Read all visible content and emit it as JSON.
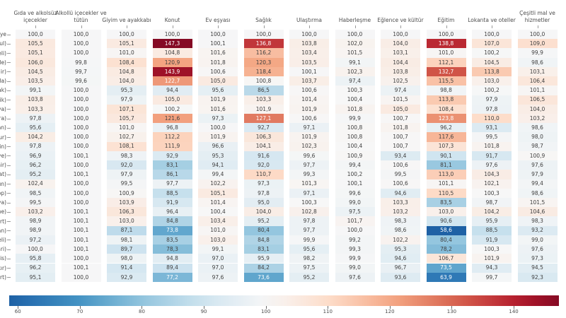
{
  "chart_data": {
    "type": "heatmap",
    "title": "",
    "columns": [
      "Gıda ve alkolsüz\niçecekler",
      "Alkollü içecekler ve\ntütün",
      "Giyim ve ayakkabı",
      "Konut",
      "Ev eşyası",
      "Sağlık",
      "Ulaştırma",
      "Haberleşme",
      "Eğlence ve kültür",
      "Eğitim",
      "Lokanta ve oteller",
      "Çeşitli mal ve\nhizmetler"
    ],
    "row_labels_visible": [
      "ye",
      "ul)",
      "eli)",
      "ale)",
      "ir)",
      "ğla)",
      "şak)",
      "cik)",
      "ova)",
      "ara)",
      "man)",
      "dur)",
      "sin)",
      "iye)",
      "hir)",
      "gat)",
      "tın)",
      "nop)",
      "sya)",
      "ane)",
      "urt)",
      "han)",
      "celi)",
      "kari)",
      "ilis)",
      "kır)",
      "iirt)"
    ],
    "values": [
      [
        100.0,
        100.0,
        100.0,
        100.0,
        100.0,
        100.0,
        100.0,
        100.0,
        100.0,
        100.0,
        100.0,
        100.0
      ],
      [
        105.5,
        100.0,
        105.1,
        147.3,
        100.1,
        136.8,
        103.8,
        102.0,
        104.0,
        138.8,
        107.0,
        109.0
      ],
      [
        105.1,
        100.0,
        101.0,
        104.8,
        101.6,
        116.2,
        103.4,
        101.5,
        103.1,
        101.0,
        100.2,
        99.9
      ],
      [
        106.0,
        99.8,
        108.4,
        120.9,
        101.8,
        120.3,
        103.5,
        99.1,
        104.4,
        112.1,
        104.5,
        98.6
      ],
      [
        104.5,
        99.7,
        104.8,
        143.9,
        100.6,
        118.4,
        100.1,
        102.3,
        103.8,
        132.7,
        113.8,
        103.1
      ],
      [
        103.5,
        99.6,
        104.0,
        122.7,
        105.0,
        100.8,
        103.7,
        97.4,
        102.5,
        115.5,
        103.0,
        106.4
      ],
      [
        99.1,
        100.0,
        95.3,
        94.4,
        95.6,
        86.5,
        100.6,
        100.3,
        97.4,
        98.8,
        100.2,
        101.1
      ],
      [
        103.8,
        100.0,
        97.9,
        105.0,
        101.9,
        103.3,
        101.4,
        100.4,
        101.5,
        113.8,
        97.9,
        106.5
      ],
      [
        103.3,
        100.0,
        107.1,
        100.2,
        101.6,
        101.9,
        101.9,
        101.8,
        105.0,
        108.4,
        97.8,
        104.0
      ],
      [
        97.8,
        100.0,
        105.7,
        121.6,
        97.3,
        127.1,
        100.6,
        99.9,
        100.7,
        123.8,
        110.0,
        103.2
      ],
      [
        95.6,
        100.0,
        101.0,
        96.8,
        100.0,
        92.7,
        97.1,
        100.8,
        101.8,
        96.2,
        93.1,
        98.6
      ],
      [
        104.2,
        100.0,
        102.7,
        112.2,
        101.9,
        106.3,
        101.9,
        100.8,
        100.7,
        117.6,
        99.5,
        98.0
      ],
      [
        97.8,
        100.0,
        108.1,
        111.9,
        96.6,
        104.1,
        102.3,
        100.4,
        100.7,
        107.3,
        101.8,
        98.7
      ],
      [
        96.9,
        100.1,
        98.3,
        92.9,
        95.3,
        91.6,
        99.6,
        100.9,
        93.4,
        90.1,
        91.7,
        100.9
      ],
      [
        96.2,
        100.0,
        92.0,
        83.1,
        94.1,
        92.0,
        97.7,
        99.4,
        100.6,
        81.1,
        97.6,
        97.6
      ],
      [
        95.2,
        100.1,
        97.9,
        86.1,
        99.4,
        110.7,
        99.3,
        100.2,
        99.5,
        113.0,
        104.3,
        97.9
      ],
      [
        102.4,
        100.0,
        99.5,
        97.7,
        102.2,
        97.3,
        101.3,
        100.1,
        100.6,
        101.1,
        102.1,
        99.4
      ],
      [
        98.5,
        100.0,
        100.9,
        88.5,
        105.1,
        97.8,
        97.1,
        99.6,
        94.6,
        110.5,
        100.3,
        98.6
      ],
      [
        99.5,
        100.0,
        103.9,
        91.9,
        101.4,
        95.0,
        100.3,
        99.0,
        103.3,
        83.5,
        98.7,
        101.5
      ],
      [
        103.2,
        100.1,
        106.3,
        96.4,
        100.4,
        104.0,
        102.8,
        97.5,
        103.2,
        103.0,
        104.2,
        104.6
      ],
      [
        98.9,
        100.1,
        103.0,
        84.8,
        103.4,
        95.2,
        97.8,
        101.7,
        98.3,
        90.6,
        95.9,
        98.3
      ],
      [
        98.9,
        100.1,
        87.1,
        73.8,
        101.0,
        80.4,
        97.7,
        100.0,
        98.6,
        58.6,
        88.5,
        93.2
      ],
      [
        97.2,
        100.1,
        98.1,
        83.5,
        103.0,
        84.8,
        99.9,
        99.2,
        102.2,
        80.4,
        91.9,
        99.0
      ],
      [
        100.0,
        100.1,
        89.7,
        78.3,
        99.1,
        83.1,
        95.6,
        99.3,
        95.3,
        78.2,
        100.3,
        97.6
      ],
      [
        95.8,
        100.0,
        98.0,
        94.8,
        97.0,
        95.9,
        98.2,
        99.9,
        94.6,
        106.7,
        101.9,
        97.3
      ],
      [
        96.2,
        100.1,
        91.4,
        89.4,
        97.0,
        84.2,
        97.5,
        99.0,
        96.7,
        73.5,
        94.3,
        94.5
      ],
      [
        95.1,
        100.0,
        92.9,
        77.2,
        97.6,
        73.6,
        95.2,
        97.6,
        93.6,
        63.9,
        99.7,
        92.3
      ]
    ],
    "decimal_separator": ",",
    "colorbar": {
      "vmin": 58.6,
      "vmax": 147.3,
      "ticks": [
        60,
        70,
        80,
        90,
        100,
        110,
        120,
        130,
        140
      ],
      "colormap_stops": [
        "#053061",
        "#2166ac",
        "#4393c3",
        "#92c5de",
        "#d1e5f0",
        "#f7f7f7",
        "#fddbc7",
        "#f4a582",
        "#d6604d",
        "#b2182b",
        "#67001f"
      ],
      "colormap_window": [
        0.09,
        0.96
      ]
    },
    "annotation_dark_color": "#404040",
    "annotation_light_color": "#ffffff",
    "legend_position": "bottom"
  }
}
